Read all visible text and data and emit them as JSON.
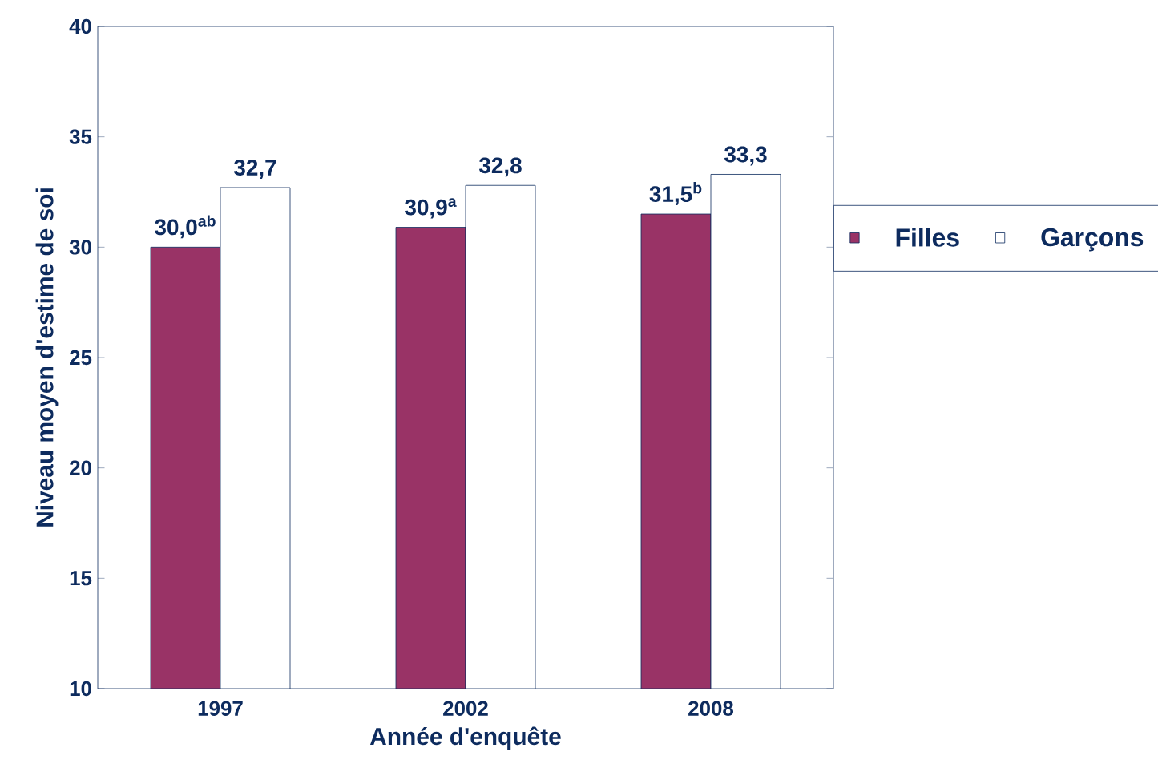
{
  "chart_data": {
    "type": "bar",
    "xlabel": "Année d'enquête",
    "ylabel": "Niveau moyen d'estime de soi",
    "categories": [
      "1997",
      "2002",
      "2008"
    ],
    "series": [
      {
        "name": "Filles",
        "color": "#993366",
        "values": [
          30.0,
          30.9,
          31.5
        ],
        "value_labels": [
          "30,0$^{ab}$",
          "30,9$^{a}$",
          "31,5$^{b}$"
        ]
      },
      {
        "name": "Garçons",
        "color": "#ffffff",
        "values": [
          32.7,
          32.8,
          33.3
        ],
        "value_labels": [
          "32,7",
          "32,8",
          "33,3"
        ]
      }
    ],
    "ylim": [
      10,
      40
    ],
    "yticks": [
      10,
      15,
      20,
      25,
      30,
      35,
      40
    ],
    "legend": "right"
  }
}
